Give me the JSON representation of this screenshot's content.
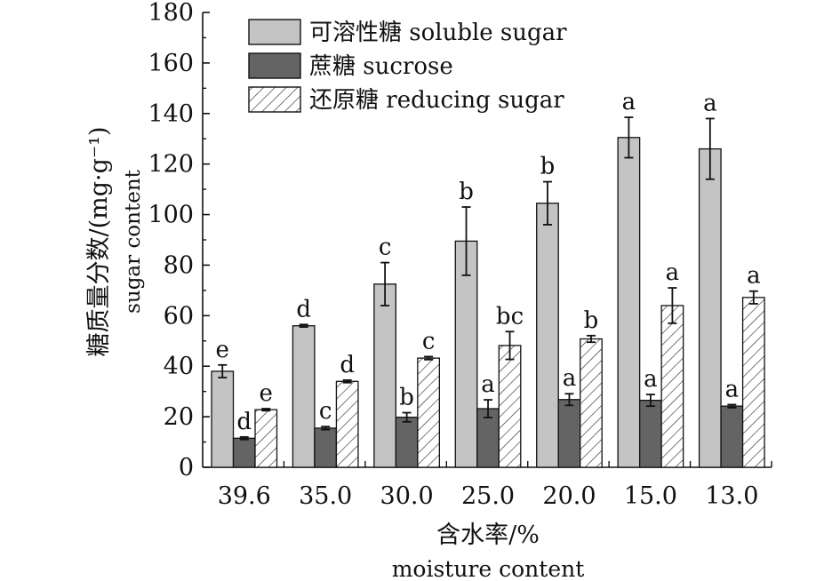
{
  "chart_data": {
    "type": "bar",
    "title": "",
    "xlabel_cn": "含水率/%",
    "xlabel_en": "moisture content",
    "ylabel_cn": "糖质量分数/(mg·g⁻¹)",
    "ylabel_en": "sugar content",
    "ylim": [
      0,
      180
    ],
    "yticks": [
      "0",
      "20",
      "40",
      "60",
      "80",
      "100",
      "120",
      "140",
      "160",
      "180"
    ],
    "categories": [
      "39.6",
      "35.0",
      "30.0",
      "25.0",
      "20.0",
      "15.0",
      "13.0"
    ],
    "legend_position": "top-left",
    "grid": false,
    "series": [
      {
        "name": "可溶性糖 soluble sugar",
        "fill": "#c4c4c4",
        "pattern": "solid",
        "values": [
          38,
          56,
          72.5,
          89.5,
          104.5,
          130.5,
          126
        ],
        "errors": [
          2.5,
          0.5,
          8.5,
          13.5,
          8.5,
          8,
          12
        ],
        "letters": [
          "e",
          "d",
          "c",
          "b",
          "b",
          "a",
          "a"
        ]
      },
      {
        "name": "蔗糖 sucrose",
        "fill": "#646464",
        "pattern": "solid",
        "values": [
          11.5,
          15.5,
          19.8,
          23.2,
          26.8,
          26.5,
          24.2
        ],
        "errors": [
          0.5,
          0.6,
          1.8,
          3.5,
          2.3,
          2.3,
          0.6
        ],
        "letters": [
          "d",
          "c",
          "b",
          "a",
          "a",
          "a",
          "a"
        ]
      },
      {
        "name": "还原糖 reducing sugar",
        "fill": "#ffffff",
        "pattern": "hatch",
        "values": [
          22.8,
          34,
          43.2,
          48.2,
          50.8,
          64,
          67.2
        ],
        "errors": [
          0.4,
          0.5,
          0.6,
          5.5,
          1.3,
          7,
          2.5
        ],
        "letters": [
          "e",
          "d",
          "c",
          "bc",
          "b",
          "a",
          "a"
        ]
      }
    ]
  }
}
